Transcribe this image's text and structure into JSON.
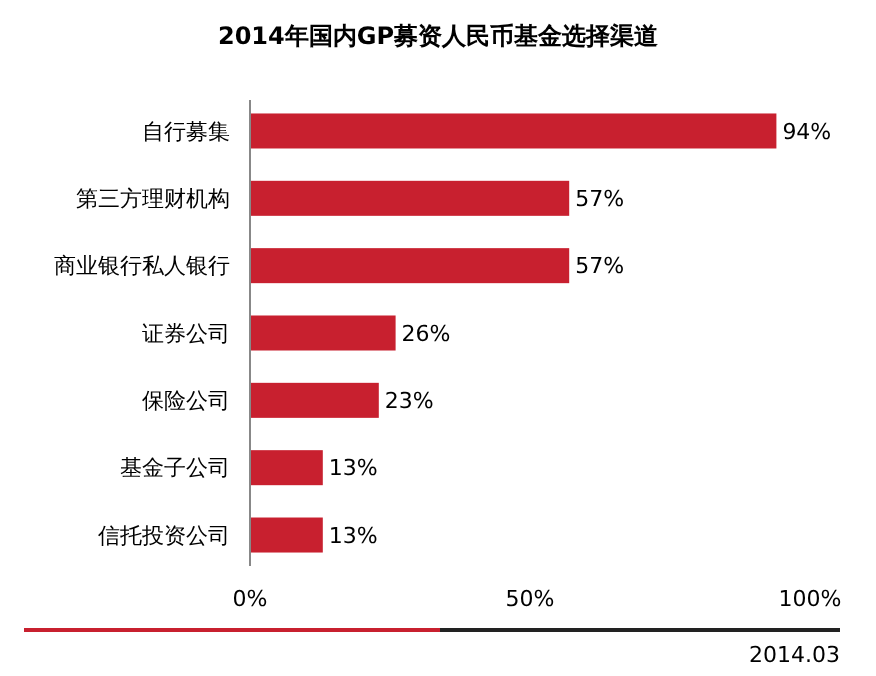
{
  "chart_data": {
    "type": "bar",
    "orientation": "horizontal",
    "title": "2014年国内GP募资人民币基金选择渠道",
    "categories": [
      "自行募集",
      "第三方理财机构",
      "商业银行私人银行",
      "证券公司",
      "保险公司",
      "基金子公司",
      "信托投资公司"
    ],
    "values": [
      94,
      57,
      57,
      26,
      23,
      13,
      13
    ],
    "value_labels": [
      "94%",
      "57%",
      "57%",
      "26%",
      "23%",
      "13%",
      "13%"
    ],
    "color": "#c8202f",
    "xlim": [
      0,
      100
    ],
    "xticks": [
      {
        "value": 0,
        "label": "0%"
      },
      {
        "value": 50,
        "label": "50%"
      },
      {
        "value": 100,
        "label": "100%"
      }
    ],
    "annotations": [
      "2014.03"
    ]
  }
}
